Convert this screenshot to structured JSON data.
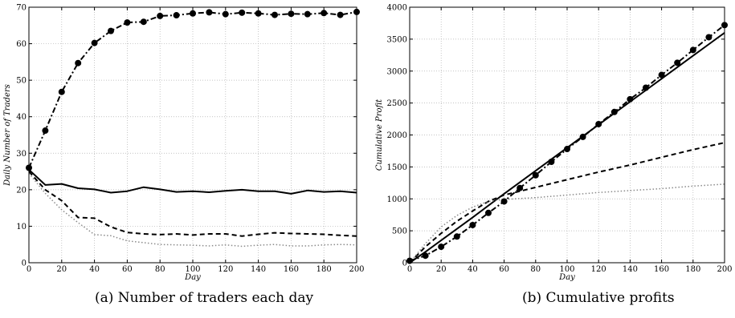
{
  "captions": {
    "a": "(a) Number of traders each day",
    "b": "(b) Cumulative profits"
  },
  "chart_data": [
    {
      "type": "line",
      "xlabel": "Day",
      "ylabel": "Daily Number of Traders",
      "xlim": [
        0,
        200
      ],
      "ylim": [
        0,
        70
      ],
      "xticks": [
        0,
        20,
        40,
        60,
        80,
        100,
        120,
        140,
        160,
        180,
        200
      ],
      "yticks": [
        0,
        10,
        20,
        30,
        40,
        50,
        60,
        70
      ],
      "grid": true,
      "series": [
        {
          "style": "solid",
          "x": [
            0,
            10,
            20,
            30,
            40,
            50,
            60,
            70,
            80,
            90,
            100,
            110,
            120,
            130,
            140,
            150,
            160,
            170,
            180,
            190,
            200
          ],
          "y": [
            25.5,
            21.3,
            21.6,
            20.4,
            20.1,
            19.2,
            19.6,
            20.7,
            20.1,
            19.4,
            19.6,
            19.3,
            19.7,
            20.0,
            19.6,
            19.6,
            18.9,
            19.8,
            19.4,
            19.6,
            19.2
          ]
        },
        {
          "style": "dashed",
          "x": [
            0,
            10,
            20,
            30,
            40,
            50,
            60,
            70,
            80,
            90,
            100,
            110,
            120,
            130,
            140,
            150,
            160,
            170,
            180,
            190,
            200
          ],
          "y": [
            25.0,
            20.0,
            17.0,
            12.4,
            12.2,
            9.8,
            8.3,
            7.9,
            7.7,
            7.9,
            7.6,
            7.9,
            7.9,
            7.3,
            7.8,
            8.2,
            8.0,
            7.9,
            7.8,
            7.5,
            7.3
          ]
        },
        {
          "style": "dotted",
          "x": [
            0,
            10,
            20,
            30,
            40,
            50,
            60,
            70,
            80,
            90,
            100,
            110,
            120,
            130,
            140,
            150,
            160,
            170,
            180,
            190,
            200
          ],
          "y": [
            24.5,
            19.0,
            14.5,
            11.0,
            7.7,
            7.4,
            6.0,
            5.5,
            5.0,
            4.9,
            4.8,
            4.6,
            4.9,
            4.5,
            4.8,
            5.0,
            4.6,
            4.6,
            4.9,
            5.0,
            4.9
          ]
        },
        {
          "style": "dash-dot with circle markers",
          "x": [
            0,
            10,
            20,
            30,
            40,
            50,
            60,
            70,
            80,
            90,
            100,
            110,
            120,
            130,
            140,
            150,
            160,
            170,
            180,
            190,
            200
          ],
          "y": [
            26.0,
            36.2,
            46.8,
            54.7,
            60.2,
            63.5,
            65.8,
            66.0,
            67.6,
            67.8,
            68.3,
            68.6,
            68.1,
            68.5,
            68.3,
            67.9,
            68.2,
            68.1,
            68.4,
            67.9,
            68.7
          ]
        }
      ]
    },
    {
      "type": "line",
      "xlabel": "Day",
      "ylabel": "Cumulative Profit",
      "xlim": [
        0,
        200
      ],
      "ylim": [
        0,
        4000
      ],
      "xticks": [
        0,
        20,
        40,
        60,
        80,
        100,
        120,
        140,
        160,
        180,
        200
      ],
      "yticks": [
        0,
        500,
        1000,
        1500,
        2000,
        2500,
        3000,
        3500,
        4000
      ],
      "grid": true,
      "series": [
        {
          "style": "solid",
          "x": [
            0,
            10,
            20,
            40,
            60,
            80,
            100,
            120,
            140,
            160,
            180,
            200
          ],
          "y": [
            0,
            170,
            350,
            710,
            1080,
            1440,
            1800,
            2160,
            2520,
            2880,
            3240,
            3600
          ]
        },
        {
          "style": "dashed",
          "x": [
            0,
            10,
            20,
            30,
            40,
            50,
            60,
            80,
            100,
            120,
            140,
            160,
            180,
            200
          ],
          "y": [
            0,
            250,
            460,
            650,
            810,
            960,
            1060,
            1180,
            1300,
            1420,
            1530,
            1650,
            1770,
            1880
          ]
        },
        {
          "style": "dotted",
          "x": [
            0,
            10,
            20,
            30,
            40,
            50,
            60,
            80,
            100,
            120,
            140,
            160,
            180,
            200
          ],
          "y": [
            0,
            300,
            560,
            740,
            870,
            960,
            990,
            1020,
            1060,
            1100,
            1130,
            1160,
            1200,
            1230
          ]
        },
        {
          "style": "dash-dot with circle markers",
          "x": [
            0,
            10,
            20,
            30,
            40,
            50,
            60,
            70,
            80,
            90,
            100,
            110,
            120,
            130,
            140,
            150,
            160,
            170,
            180,
            190,
            200
          ],
          "y": [
            30,
            110,
            250,
            410,
            590,
            780,
            960,
            1170,
            1370,
            1580,
            1780,
            1970,
            2170,
            2360,
            2560,
            2740,
            2940,
            3130,
            3330,
            3530,
            3720
          ]
        }
      ]
    }
  ]
}
